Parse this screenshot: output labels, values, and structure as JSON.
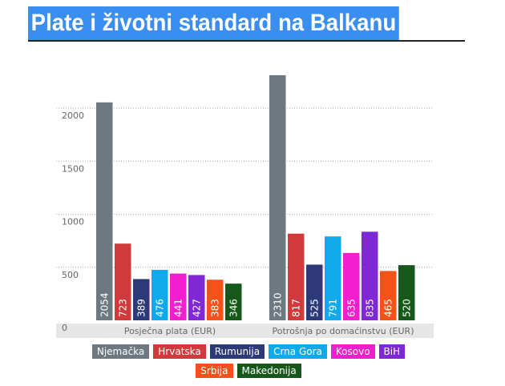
{
  "chart_data": {
    "type": "bar",
    "title": "Plate i životni standard na Balkanu",
    "categories": [
      "Posječna plata (EUR)",
      "Potrošnja po domaćinstvu (EUR)"
    ],
    "series": [
      {
        "name": "Njemačka",
        "color": "#6d7880",
        "values": [
          2054,
          2310
        ]
      },
      {
        "name": "Hrvatska",
        "color": "#d03a3a",
        "values": [
          723,
          817
        ]
      },
      {
        "name": "Rumunija",
        "color": "#2c3a7a",
        "values": [
          389,
          525
        ]
      },
      {
        "name": "Crna Gora",
        "color": "#10a9ec",
        "values": [
          476,
          791
        ]
      },
      {
        "name": "Kosovo",
        "color": "#f21fcf",
        "values": [
          441,
          635
        ]
      },
      {
        "name": "BiH",
        "color": "#8128d6",
        "values": [
          427,
          835
        ]
      },
      {
        "name": "Srbija",
        "color": "#f5521a",
        "values": [
          383,
          465
        ]
      },
      {
        "name": "Makedonija",
        "color": "#16581a",
        "values": [
          346,
          520
        ]
      }
    ],
    "ylim": [
      0,
      2400
    ],
    "yticks": [
      0,
      500,
      1000,
      1500,
      2000
    ],
    "grid": true
  }
}
